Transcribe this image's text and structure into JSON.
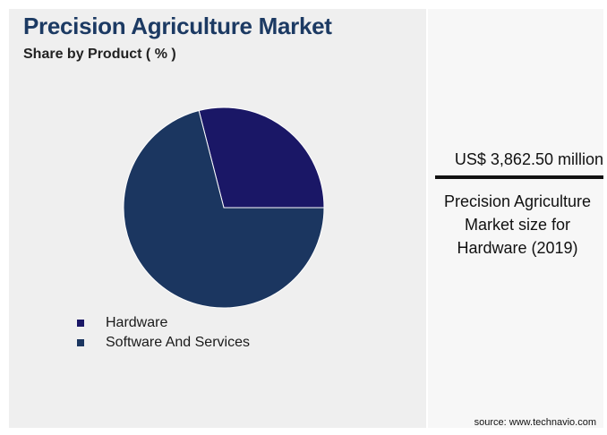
{
  "header": {
    "title": "Precision Agriculture Market",
    "subtitle": "Share by Product ( % )"
  },
  "highlight": {
    "value": "US$ 3,862.50 million",
    "caption": "Precision Agriculture Market size for Hardware (2019)"
  },
  "source": "source: www.technavio.com",
  "colors": {
    "hardware": "#1a1766",
    "software": "#1b3660"
  },
  "chart_data": {
    "type": "pie",
    "title": "Precision Agriculture Market",
    "subtitle": "Share by Product ( % )",
    "slices": [
      {
        "label": "Hardware",
        "value": 29,
        "color": "#1a1766"
      },
      {
        "label": "Software And Services",
        "value": 71,
        "color": "#1b3660"
      }
    ],
    "legend": "bottom-left"
  }
}
